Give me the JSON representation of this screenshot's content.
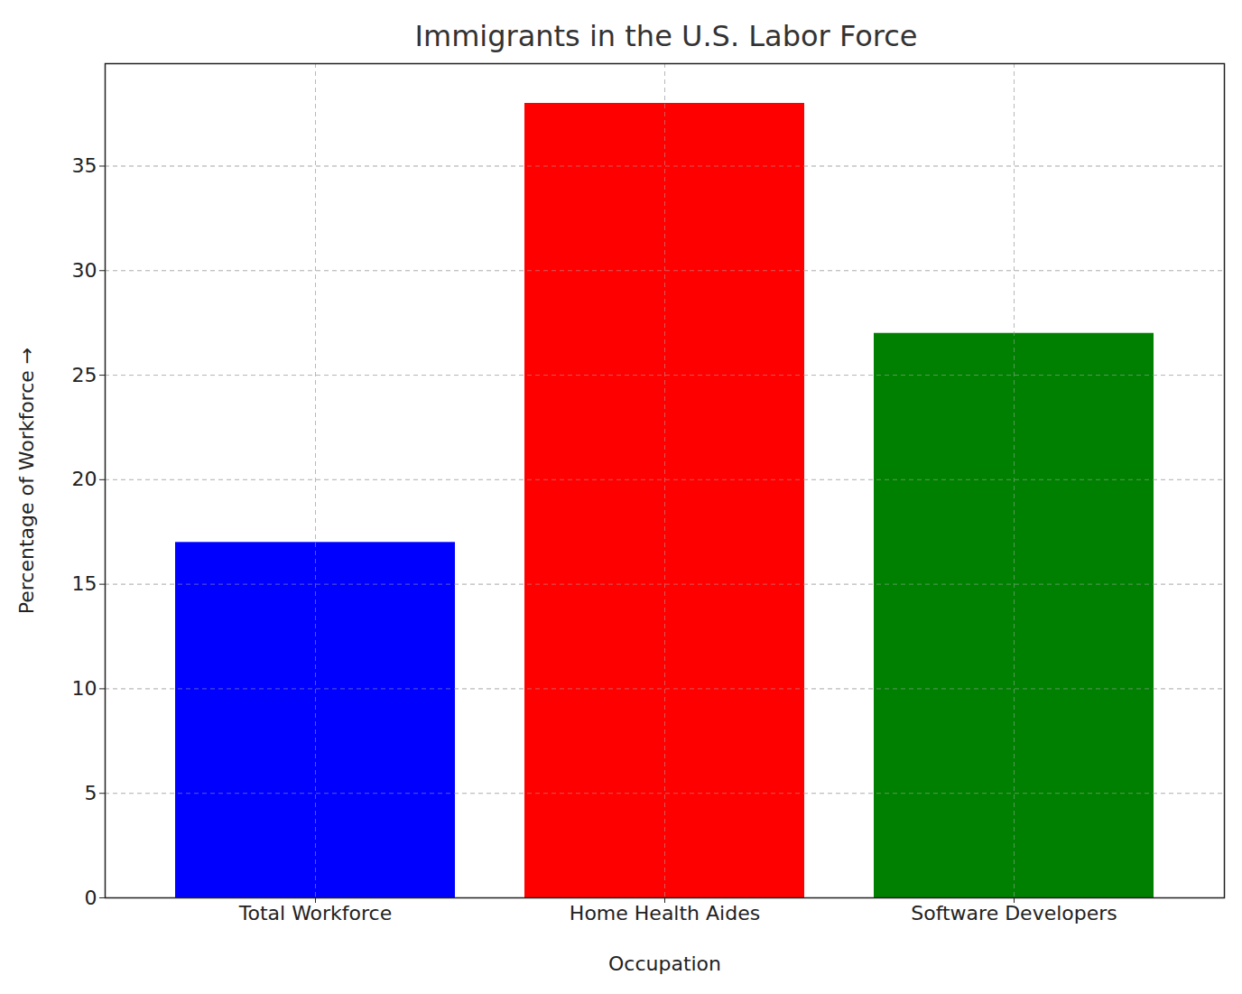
{
  "chart_data": {
    "type": "bar",
    "title": "Immigrants in the U.S. Labor Force",
    "x_label": "Occupation",
    "y_label": "Percentage of Workforce",
    "categories": [
      "Total Workforce",
      "Home Health Aides",
      "Software Developers"
    ],
    "values": [
      17,
      38,
      27
    ],
    "colors": [
      "#0000ff",
      "#ff0000",
      "#008000"
    ],
    "ylim": [
      0,
      39.9
    ],
    "yticks": [
      0,
      5,
      10,
      15,
      20,
      25,
      30,
      35
    ],
    "grid": true
  }
}
